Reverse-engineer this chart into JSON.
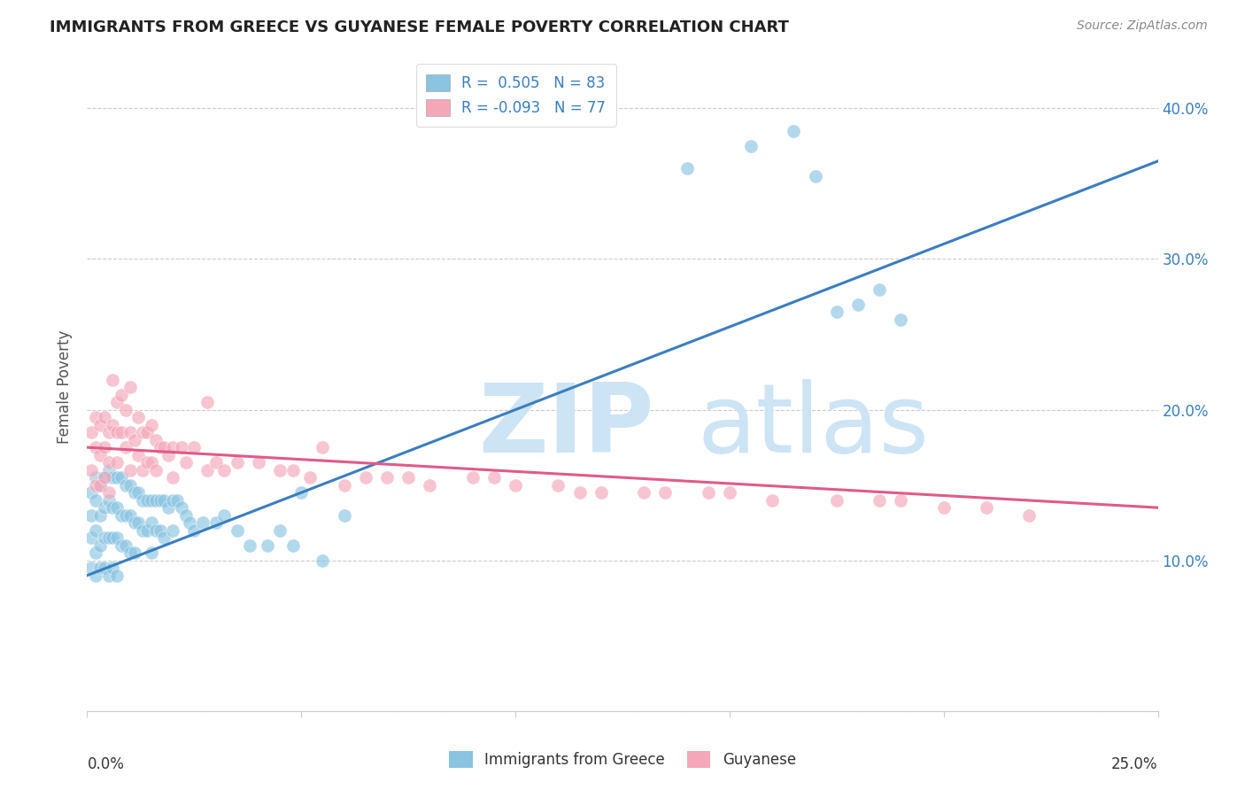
{
  "title": "IMMIGRANTS FROM GREECE VS GUYANESE FEMALE POVERTY CORRELATION CHART",
  "source": "Source: ZipAtlas.com",
  "ylabel": "Female Poverty",
  "blue_color": "#89c4e1",
  "pink_color": "#f4a7b9",
  "blue_line_color": "#3a7ebf",
  "pink_line_color": "#e05a8a",
  "dashed_line_color": "#b0b0b0",
  "r_value_blue": 0.505,
  "r_value_pink": -0.093,
  "n_blue": 83,
  "n_pink": 77,
  "xlim": [
    0.0,
    0.25
  ],
  "ylim": [
    0.0,
    0.43
  ],
  "blue_line_x0": 0.0,
  "blue_line_y0": 0.09,
  "blue_line_x1": 0.25,
  "blue_line_y1": 0.365,
  "pink_line_x0": 0.0,
  "pink_line_y0": 0.175,
  "pink_line_x1": 0.25,
  "pink_line_y1": 0.135,
  "blue_scatter_x": [
    0.001,
    0.001,
    0.001,
    0.001,
    0.002,
    0.002,
    0.002,
    0.002,
    0.002,
    0.003,
    0.003,
    0.003,
    0.003,
    0.004,
    0.004,
    0.004,
    0.004,
    0.005,
    0.005,
    0.005,
    0.005,
    0.006,
    0.006,
    0.006,
    0.006,
    0.007,
    0.007,
    0.007,
    0.007,
    0.008,
    0.008,
    0.008,
    0.009,
    0.009,
    0.009,
    0.01,
    0.01,
    0.01,
    0.011,
    0.011,
    0.011,
    0.012,
    0.012,
    0.013,
    0.013,
    0.014,
    0.014,
    0.015,
    0.015,
    0.015,
    0.016,
    0.016,
    0.017,
    0.017,
    0.018,
    0.018,
    0.019,
    0.02,
    0.02,
    0.021,
    0.022,
    0.023,
    0.024,
    0.025,
    0.027,
    0.03,
    0.032,
    0.035,
    0.038,
    0.042,
    0.045,
    0.048,
    0.05,
    0.055,
    0.06,
    0.14,
    0.155,
    0.165,
    0.17,
    0.175,
    0.18,
    0.185,
    0.19
  ],
  "blue_scatter_y": [
    0.145,
    0.13,
    0.115,
    0.095,
    0.155,
    0.14,
    0.12,
    0.105,
    0.09,
    0.15,
    0.13,
    0.11,
    0.095,
    0.155,
    0.135,
    0.115,
    0.095,
    0.16,
    0.14,
    0.115,
    0.09,
    0.155,
    0.135,
    0.115,
    0.095,
    0.155,
    0.135,
    0.115,
    0.09,
    0.155,
    0.13,
    0.11,
    0.15,
    0.13,
    0.11,
    0.15,
    0.13,
    0.105,
    0.145,
    0.125,
    0.105,
    0.145,
    0.125,
    0.14,
    0.12,
    0.14,
    0.12,
    0.14,
    0.125,
    0.105,
    0.14,
    0.12,
    0.14,
    0.12,
    0.14,
    0.115,
    0.135,
    0.14,
    0.12,
    0.14,
    0.135,
    0.13,
    0.125,
    0.12,
    0.125,
    0.125,
    0.13,
    0.12,
    0.11,
    0.11,
    0.12,
    0.11,
    0.145,
    0.1,
    0.13,
    0.36,
    0.375,
    0.385,
    0.355,
    0.265,
    0.27,
    0.28,
    0.26
  ],
  "pink_scatter_x": [
    0.001,
    0.001,
    0.002,
    0.002,
    0.002,
    0.003,
    0.003,
    0.003,
    0.004,
    0.004,
    0.004,
    0.005,
    0.005,
    0.005,
    0.006,
    0.006,
    0.007,
    0.007,
    0.007,
    0.008,
    0.008,
    0.009,
    0.009,
    0.01,
    0.01,
    0.01,
    0.011,
    0.012,
    0.012,
    0.013,
    0.013,
    0.014,
    0.014,
    0.015,
    0.015,
    0.016,
    0.016,
    0.017,
    0.018,
    0.019,
    0.02,
    0.02,
    0.022,
    0.023,
    0.025,
    0.028,
    0.028,
    0.03,
    0.032,
    0.035,
    0.04,
    0.045,
    0.048,
    0.052,
    0.055,
    0.06,
    0.065,
    0.07,
    0.075,
    0.08,
    0.09,
    0.095,
    0.1,
    0.11,
    0.115,
    0.12,
    0.13,
    0.135,
    0.145,
    0.15,
    0.16,
    0.175,
    0.185,
    0.19,
    0.2,
    0.21,
    0.22
  ],
  "pink_scatter_y": [
    0.185,
    0.16,
    0.195,
    0.175,
    0.15,
    0.19,
    0.17,
    0.15,
    0.195,
    0.175,
    0.155,
    0.185,
    0.165,
    0.145,
    0.22,
    0.19,
    0.205,
    0.185,
    0.165,
    0.21,
    0.185,
    0.2,
    0.175,
    0.215,
    0.185,
    0.16,
    0.18,
    0.195,
    0.17,
    0.185,
    0.16,
    0.185,
    0.165,
    0.19,
    0.165,
    0.18,
    0.16,
    0.175,
    0.175,
    0.17,
    0.175,
    0.155,
    0.175,
    0.165,
    0.175,
    0.205,
    0.16,
    0.165,
    0.16,
    0.165,
    0.165,
    0.16,
    0.16,
    0.155,
    0.175,
    0.15,
    0.155,
    0.155,
    0.155,
    0.15,
    0.155,
    0.155,
    0.15,
    0.15,
    0.145,
    0.145,
    0.145,
    0.145,
    0.145,
    0.145,
    0.14,
    0.14,
    0.14,
    0.14,
    0.135,
    0.135,
    0.13
  ]
}
